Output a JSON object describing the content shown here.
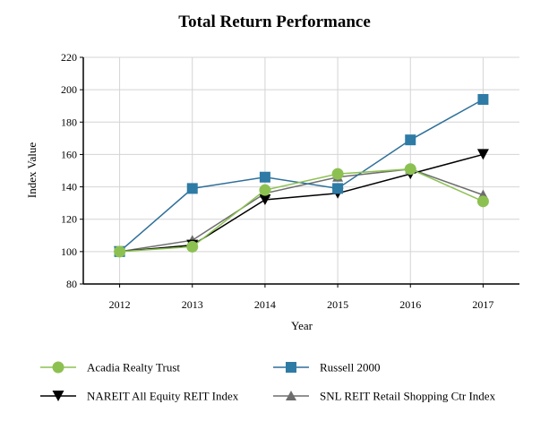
{
  "chart_data": {
    "type": "line",
    "title": "Total Return Performance",
    "xlabel": "Year",
    "ylabel": "Index Value",
    "categories": [
      "2012",
      "2013",
      "2014",
      "2015",
      "2016",
      "2017"
    ],
    "ylim": [
      80,
      220
    ],
    "yticks": [
      80,
      100,
      120,
      140,
      160,
      180,
      200,
      220
    ],
    "grid": true,
    "legend_position": "bottom",
    "series": [
      {
        "name": "Acadia Realty Trust",
        "color": "#8cc152",
        "line_color": "#8cc152",
        "marker": "circle",
        "values": [
          100,
          103,
          138,
          148,
          151,
          131
        ]
      },
      {
        "name": "Russell 2000",
        "color": "#2e7ba6",
        "line_color": "#2e6f9a",
        "marker": "square",
        "values": [
          100,
          139,
          146,
          139,
          169,
          194
        ]
      },
      {
        "name": "NAREIT All Equity REIT Index",
        "color": "#000000",
        "line_color": "#000000",
        "marker": "triangle-down",
        "values": [
          100,
          104,
          132,
          136,
          148,
          160
        ]
      },
      {
        "name": "SNL REIT Retail Shopping Ctr Index",
        "color": "#6d6d6d",
        "line_color": "#6d6d6d",
        "marker": "triangle-up",
        "values": [
          100,
          107,
          136,
          146,
          151,
          135
        ]
      }
    ]
  }
}
